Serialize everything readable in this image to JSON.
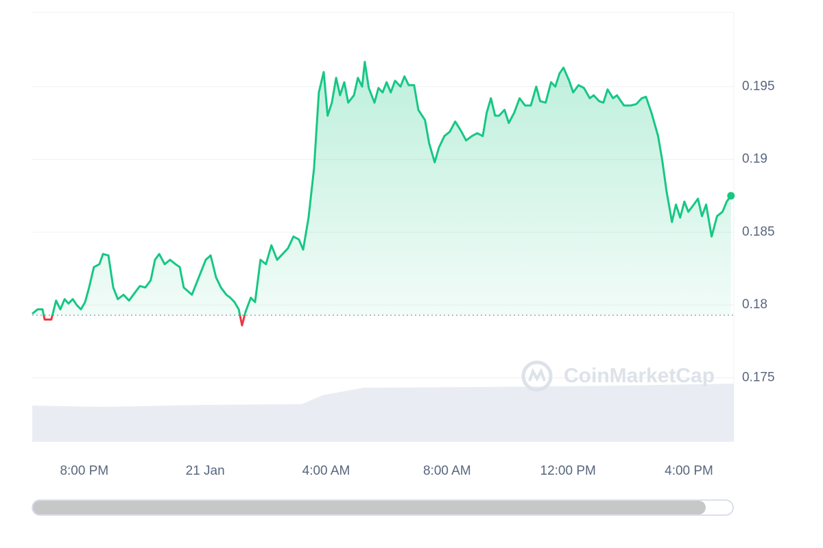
{
  "chart_data": {
    "type": "line",
    "watermark": "CoinMarketCap",
    "x": [
      18.28,
      18.46,
      18.62,
      18.69,
      18.91,
      19.07,
      19.21,
      19.35,
      19.48,
      19.62,
      19.75,
      19.89,
      20.03,
      20.16,
      20.32,
      20.5,
      20.62,
      20.8,
      20.96,
      21.11,
      21.3,
      21.48,
      21.66,
      21.84,
      22.02,
      22.2,
      22.34,
      22.48,
      22.66,
      22.84,
      23.02,
      23.16,
      23.29,
      23.56,
      23.79,
      24.02,
      24.18,
      24.36,
      24.52,
      24.7,
      24.83,
      24.97,
      25.11,
      25.22,
      25.33,
      25.51,
      25.65,
      25.83,
      26.01,
      26.19,
      26.38,
      26.56,
      26.74,
      26.92,
      27.1,
      27.24,
      27.42,
      27.6,
      27.76,
      27.92,
      28.05,
      28.19,
      28.33,
      28.46,
      28.6,
      28.73,
      28.92,
      29.05,
      29.19,
      29.28,
      29.41,
      29.6,
      29.73,
      29.87,
      30.0,
      30.14,
      30.28,
      30.46,
      30.59,
      30.73,
      30.91,
      31.05,
      31.27,
      31.41,
      31.59,
      31.73,
      31.91,
      32.09,
      32.27,
      32.45,
      32.63,
      32.82,
      33.0,
      33.18,
      33.31,
      33.45,
      33.59,
      33.72,
      33.9,
      34.04,
      34.22,
      34.4,
      34.58,
      34.77,
      34.95,
      35.08,
      35.26,
      35.44,
      35.58,
      35.72,
      35.85,
      36.04,
      36.17,
      36.35,
      36.53,
      36.72,
      36.85,
      37.03,
      37.17,
      37.31,
      37.49,
      37.62,
      37.85,
      38.08,
      38.26,
      38.44,
      38.58,
      38.76,
      38.98,
      39.12,
      39.26,
      39.44,
      39.57,
      39.71,
      39.85,
      39.98,
      40.16,
      40.3,
      40.43,
      40.57,
      40.75,
      40.93,
      41.11,
      41.25,
      41.39
    ],
    "series": [
      {
        "name": "Price",
        "color": "#16c784",
        "down_color": "#ea3943",
        "values": [
          0.1794,
          0.1797,
          0.1797,
          0.179,
          0.179,
          0.1803,
          0.1797,
          0.1804,
          0.1801,
          0.1804,
          0.18,
          0.1797,
          0.1802,
          0.1812,
          0.1826,
          0.1828,
          0.1835,
          0.1834,
          0.1812,
          0.1804,
          0.1807,
          0.1803,
          0.1808,
          0.1813,
          0.1812,
          0.1817,
          0.1831,
          0.1835,
          0.1828,
          0.1831,
          0.1828,
          0.1826,
          0.1812,
          0.1807,
          0.1819,
          0.1831,
          0.1834,
          0.1819,
          0.1812,
          0.1807,
          0.1805,
          0.1802,
          0.1797,
          0.1786,
          0.1795,
          0.1805,
          0.1802,
          0.1831,
          0.1828,
          0.1841,
          0.1831,
          0.1835,
          0.1839,
          0.1847,
          0.1845,
          0.1838,
          0.186,
          0.1894,
          0.1946,
          0.196,
          0.193,
          0.1939,
          0.1956,
          0.1944,
          0.1953,
          0.1939,
          0.1944,
          0.1956,
          0.195,
          0.1967,
          0.1949,
          0.1939,
          0.1949,
          0.1946,
          0.1953,
          0.1946,
          0.1954,
          0.195,
          0.1957,
          0.1951,
          0.1951,
          0.1934,
          0.1927,
          0.1911,
          0.1898,
          0.1908,
          0.1916,
          0.1919,
          0.1926,
          0.192,
          0.1913,
          0.1916,
          0.1918,
          0.1916,
          0.1932,
          0.1942,
          0.193,
          0.193,
          0.1934,
          0.1925,
          0.1932,
          0.1942,
          0.1937,
          0.1937,
          0.195,
          0.194,
          0.1939,
          0.1953,
          0.195,
          0.1959,
          0.1963,
          0.1954,
          0.1946,
          0.1951,
          0.1949,
          0.1942,
          0.1944,
          0.194,
          0.1939,
          0.1948,
          0.1942,
          0.1944,
          0.1937,
          0.1937,
          0.1938,
          0.1942,
          0.1943,
          0.1932,
          0.1916,
          0.1899,
          0.1878,
          0.1857,
          0.1869,
          0.186,
          0.1871,
          0.1864,
          0.1869,
          0.1873,
          0.1861,
          0.1869,
          0.1847,
          0.1861,
          0.1864,
          0.1871,
          0.1875
        ]
      }
    ],
    "baseline": 0.1793,
    "xlim": [
      18.28,
      41.44
    ],
    "xticks": [
      {
        "value": 20,
        "label": "8:00 PM"
      },
      {
        "value": 24,
        "label": "21 Jan"
      },
      {
        "value": 28,
        "label": "4:00 AM"
      },
      {
        "value": 32,
        "label": "8:00 AM"
      },
      {
        "value": 36,
        "label": "12:00 PM"
      },
      {
        "value": 40,
        "label": "4:00 PM"
      }
    ],
    "ylim": [
      0.1706,
      0.2001
    ],
    "yticks": [
      0.175,
      0.18,
      0.185,
      0.19,
      0.195
    ],
    "grid": true
  }
}
